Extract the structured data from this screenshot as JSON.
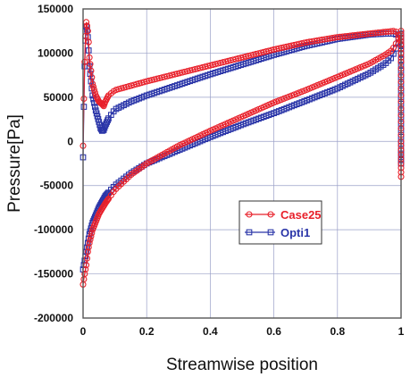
{
  "chart_data": {
    "type": "scatter",
    "xlabel": "Streamwise position",
    "ylabel": "Pressure[Pa]",
    "xlim": [
      0,
      1
    ],
    "ylim": [
      -200000,
      150000
    ],
    "x_ticks": [
      "0",
      "0.2",
      "0.4",
      "0.6",
      "0.8",
      "1"
    ],
    "y_ticks": [
      "150000",
      "100000",
      "50000",
      "0",
      "-50000",
      "-100000",
      "-150000",
      "-200000"
    ],
    "grid": true,
    "legend_position": "center-right",
    "series": [
      {
        "name": "Case25",
        "color": "#e8202a",
        "marker": "circle",
        "upper": {
          "x": [
            0.0,
            0.002,
            0.005,
            0.008,
            0.01,
            0.012,
            0.015,
            0.018,
            0.02,
            0.025,
            0.03,
            0.04,
            0.05,
            0.06,
            0.065,
            0.07,
            0.08,
            0.1,
            0.15,
            0.2,
            0.3,
            0.4,
            0.5,
            0.6,
            0.7,
            0.8,
            0.9,
            0.95,
            0.98,
            0.99,
            1.0
          ],
          "y": [
            -5000,
            40000,
            90000,
            125000,
            135000,
            132000,
            125000,
            110000,
            95000,
            80000,
            65000,
            52000,
            45000,
            42000,
            40000,
            45000,
            52000,
            58000,
            63000,
            68000,
            77000,
            86000,
            95000,
            104000,
            112000,
            118000,
            122000,
            124000,
            125000,
            123000,
            110000
          ]
        },
        "lower": {
          "x": [
            0.0,
            0.005,
            0.01,
            0.015,
            0.02,
            0.03,
            0.05,
            0.07,
            0.1,
            0.15,
            0.2,
            0.3,
            0.4,
            0.5,
            0.6,
            0.7,
            0.8,
            0.9,
            0.95,
            0.97,
            0.98,
            0.99,
            0.995,
            1.0
          ],
          "y": [
            -162000,
            -150000,
            -140000,
            -125000,
            -115000,
            -100000,
            -82000,
            -70000,
            -55000,
            -38000,
            -25000,
            -5000,
            12000,
            28000,
            44000,
            58000,
            73000,
            88000,
            98000,
            103000,
            108000,
            115000,
            120000,
            110000
          ]
        },
        "trailing_edge_y": [
          125000,
          110000,
          90000,
          60000,
          30000,
          0,
          -20000,
          -40000
        ]
      },
      {
        "name": "Opti1",
        "color": "#2a35a8",
        "marker": "square",
        "upper": {
          "x": [
            0.0,
            0.002,
            0.005,
            0.008,
            0.01,
            0.012,
            0.015,
            0.018,
            0.02,
            0.025,
            0.03,
            0.04,
            0.05,
            0.055,
            0.06,
            0.065,
            0.07,
            0.08,
            0.1,
            0.15,
            0.2,
            0.3,
            0.4,
            0.5,
            0.6,
            0.7,
            0.8,
            0.9,
            0.95,
            0.98,
            0.99,
            1.0
          ],
          "y": [
            -18000,
            30000,
            85000,
            120000,
            130000,
            128000,
            118000,
            100000,
            85000,
            68000,
            52000,
            35000,
            22000,
            15000,
            12000,
            13000,
            18000,
            26000,
            36000,
            45000,
            52000,
            64000,
            76000,
            87000,
            98000,
            108000,
            116000,
            121000,
            122000,
            122000,
            120000,
            108000
          ]
        },
        "lower": {
          "x": [
            0.0,
            0.005,
            0.01,
            0.015,
            0.02,
            0.03,
            0.05,
            0.07,
            0.1,
            0.15,
            0.2,
            0.3,
            0.4,
            0.5,
            0.6,
            0.7,
            0.8,
            0.9,
            0.95,
            0.97,
            0.98,
            0.99,
            0.995,
            1.0
          ],
          "y": [
            -145000,
            -135000,
            -125000,
            -115000,
            -105000,
            -92000,
            -75000,
            -62000,
            -50000,
            -36000,
            -25000,
            -10000,
            5000,
            19000,
            32000,
            46000,
            60000,
            77000,
            88000,
            95000,
            102000,
            110000,
            115000,
            108000
          ]
        },
        "trailing_edge_y": [
          122000,
          105000,
          80000,
          50000,
          20000,
          -10000,
          -25000
        ]
      }
    ]
  }
}
